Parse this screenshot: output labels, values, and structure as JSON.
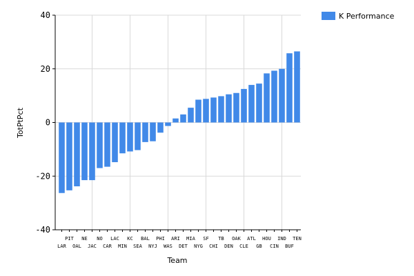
{
  "chart_data": {
    "type": "bar",
    "title": "",
    "xlabel": "Team",
    "ylabel": "TotPtPct",
    "ylim": [
      -40,
      40
    ],
    "yticks": [
      -40,
      -20,
      0,
      20,
      40
    ],
    "grid": true,
    "legend_position": "top-right",
    "categories": [
      "LAR",
      "PIT",
      "OAL",
      "NE",
      "JAC",
      "NO",
      "CAR",
      "LAC",
      "MIN",
      "KC",
      "SEA",
      "BAL",
      "NYJ",
      "PHI",
      "WAS",
      "ARI",
      "DET",
      "MIA",
      "NYG",
      "SF",
      "CHI",
      "TB",
      "DEN",
      "OAK",
      "CLE",
      "ATL",
      "GB",
      "HOU",
      "CIN",
      "IND",
      "BUF",
      "TEN"
    ],
    "series": [
      {
        "name": "K Performance",
        "color": "#4189e8",
        "values": [
          -26.3,
          -25.3,
          -23.8,
          -21.5,
          -21.5,
          -17.0,
          -16.5,
          -14.8,
          -11.5,
          -10.8,
          -10.3,
          -7.3,
          -7.0,
          -3.8,
          -1.3,
          1.5,
          3.0,
          5.5,
          8.5,
          8.8,
          9.3,
          9.8,
          10.5,
          11.0,
          12.5,
          14.0,
          14.5,
          18.3,
          19.3,
          20.0,
          25.8,
          26.5
        ]
      }
    ]
  }
}
